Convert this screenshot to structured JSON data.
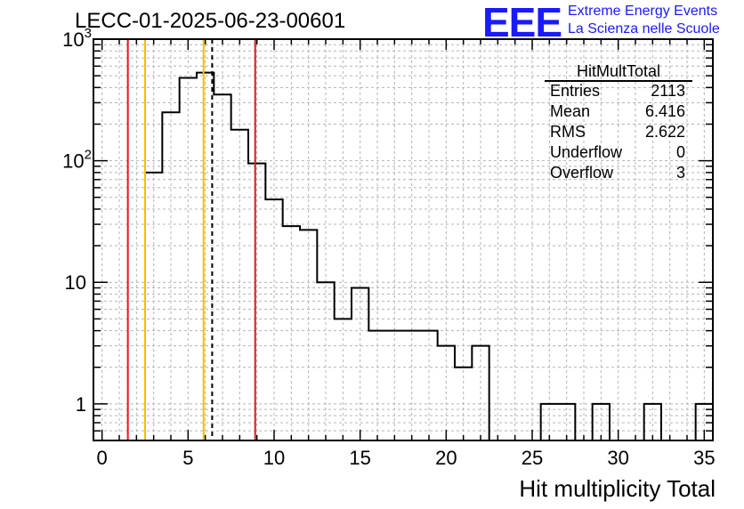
{
  "title": "LECC-01-2025-06-23-00601",
  "logo": {
    "mark": "EEE",
    "line1": "Extreme Energy Events",
    "line2": "La Scienza nelle Scuole"
  },
  "colors": {
    "histogram": "#000000",
    "red_lines": "#e8141b",
    "yellow_lines": "#f2c200",
    "mean_line": "#000000",
    "grid": "#b4b4b4",
    "logo_blue": "#1a1aff"
  },
  "stats": {
    "name": "HitMultTotal",
    "rows": [
      {
        "label": "Entries",
        "value": "2113"
      },
      {
        "label": "Mean",
        "value": "6.416"
      },
      {
        "label": "RMS",
        "value": "2.622"
      },
      {
        "label": "Underflow",
        "value": "0"
      },
      {
        "label": "Overflow",
        "value": "3"
      }
    ]
  },
  "chart_data": {
    "type": "histogram",
    "title": "LECC-01-2025-06-23-00601",
    "xlabel": "Hit multiplicity Total",
    "ylabel": "",
    "x_range": [
      -0.5,
      35.5
    ],
    "y_range": [
      0.5,
      1000
    ],
    "y_scale": "log",
    "grid": true,
    "bin_width": 1,
    "bin_centers": [
      0,
      1,
      2,
      3,
      4,
      5,
      6,
      7,
      8,
      9,
      10,
      11,
      12,
      13,
      14,
      15,
      16,
      17,
      18,
      19,
      20,
      21,
      22,
      23,
      24,
      25,
      26,
      27,
      28,
      29,
      30,
      31,
      32,
      33,
      34,
      35
    ],
    "counts": [
      0,
      0,
      0,
      80,
      250,
      480,
      530,
      350,
      180,
      95,
      48,
      29,
      27,
      10,
      5,
      9,
      4,
      4,
      4,
      4,
      3,
      2,
      3,
      0,
      0,
      0,
      1,
      1,
      0,
      1,
      0,
      0,
      1,
      0,
      0,
      1
    ],
    "x_ticks": [
      "0",
      "5",
      "10",
      "15",
      "20",
      "25",
      "30",
      "35"
    ],
    "x_tick_values": [
      0,
      5,
      10,
      15,
      20,
      25,
      30,
      35
    ],
    "y_ticks": [
      "1",
      "10",
      "10^2",
      "10^3"
    ],
    "y_tick_values": [
      1,
      10,
      100,
      1000
    ],
    "vertical_lines": [
      {
        "x": 1.5,
        "color": "red"
      },
      {
        "x": 2.5,
        "color": "yellow"
      },
      {
        "x": 5.9,
        "color": "yellow"
      },
      {
        "x": 6.4,
        "color": "black",
        "style": "dashed"
      },
      {
        "x": 8.9,
        "color": "red"
      }
    ]
  }
}
